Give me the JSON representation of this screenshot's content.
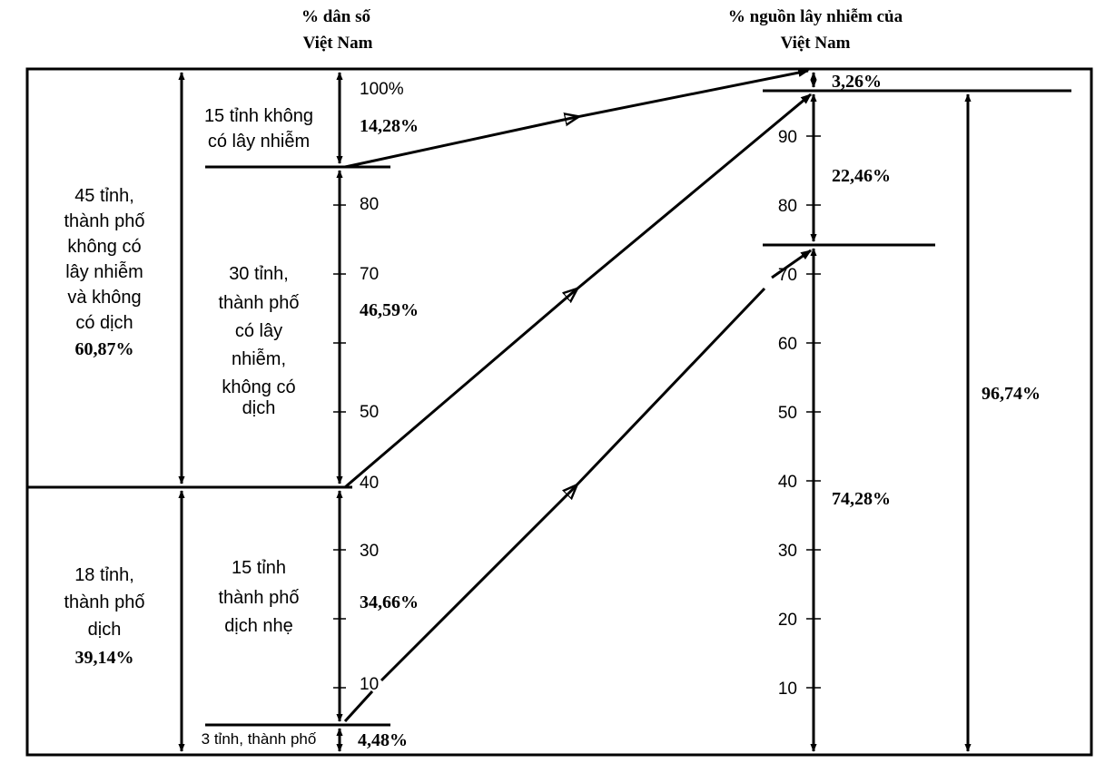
{
  "headers": {
    "left_line1": "% dân số",
    "left_line2": "Việt Nam",
    "right_line1": "% nguồn lây nhiễm của",
    "right_line2": "Việt Nam"
  },
  "left_groups": {
    "no_epidemic": {
      "lines": [
        "45 tỉnh,",
        "thành phố",
        "không có",
        "lây nhiễm",
        "và không",
        "có dịch"
      ],
      "percent": "60,87%"
    },
    "epidemic": {
      "lines": [
        "18 tỉnh,",
        "thành phố",
        "dịch"
      ],
      "percent": "39,14%"
    }
  },
  "middle_groups": {
    "no_infection": {
      "lines": [
        "15 tỉnh không",
        "có lây nhiễm"
      ]
    },
    "infection_no_epidemic": {
      "lines": [
        "30 tỉnh,",
        "thành phố",
        "có lây",
        "nhiễm,",
        "không có",
        "dịch"
      ]
    },
    "light_epidemic": {
      "lines": [
        "15 tỉnh",
        "thành phố",
        "dịch nhẹ"
      ]
    },
    "three_provinces": {
      "label": "3 tỉnh, thành phố"
    }
  },
  "left_axis_ticks": [
    "100%",
    "80",
    "70",
    "50",
    "40",
    "30",
    "10"
  ],
  "left_percentages": {
    "p1": "14,28%",
    "p2": "46,59%",
    "p3": "34,66%",
    "p4": "4,48%"
  },
  "right_axis_ticks": [
    "90",
    "80",
    "70",
    "60",
    "50",
    "40",
    "30",
    "20",
    "10"
  ],
  "right_percentages": {
    "top": "3,26%",
    "middle": "22,46%",
    "bottom": "74,28%",
    "total": "96,74%"
  },
  "colors": {
    "stroke": "#000000",
    "background": "#ffffff"
  }
}
